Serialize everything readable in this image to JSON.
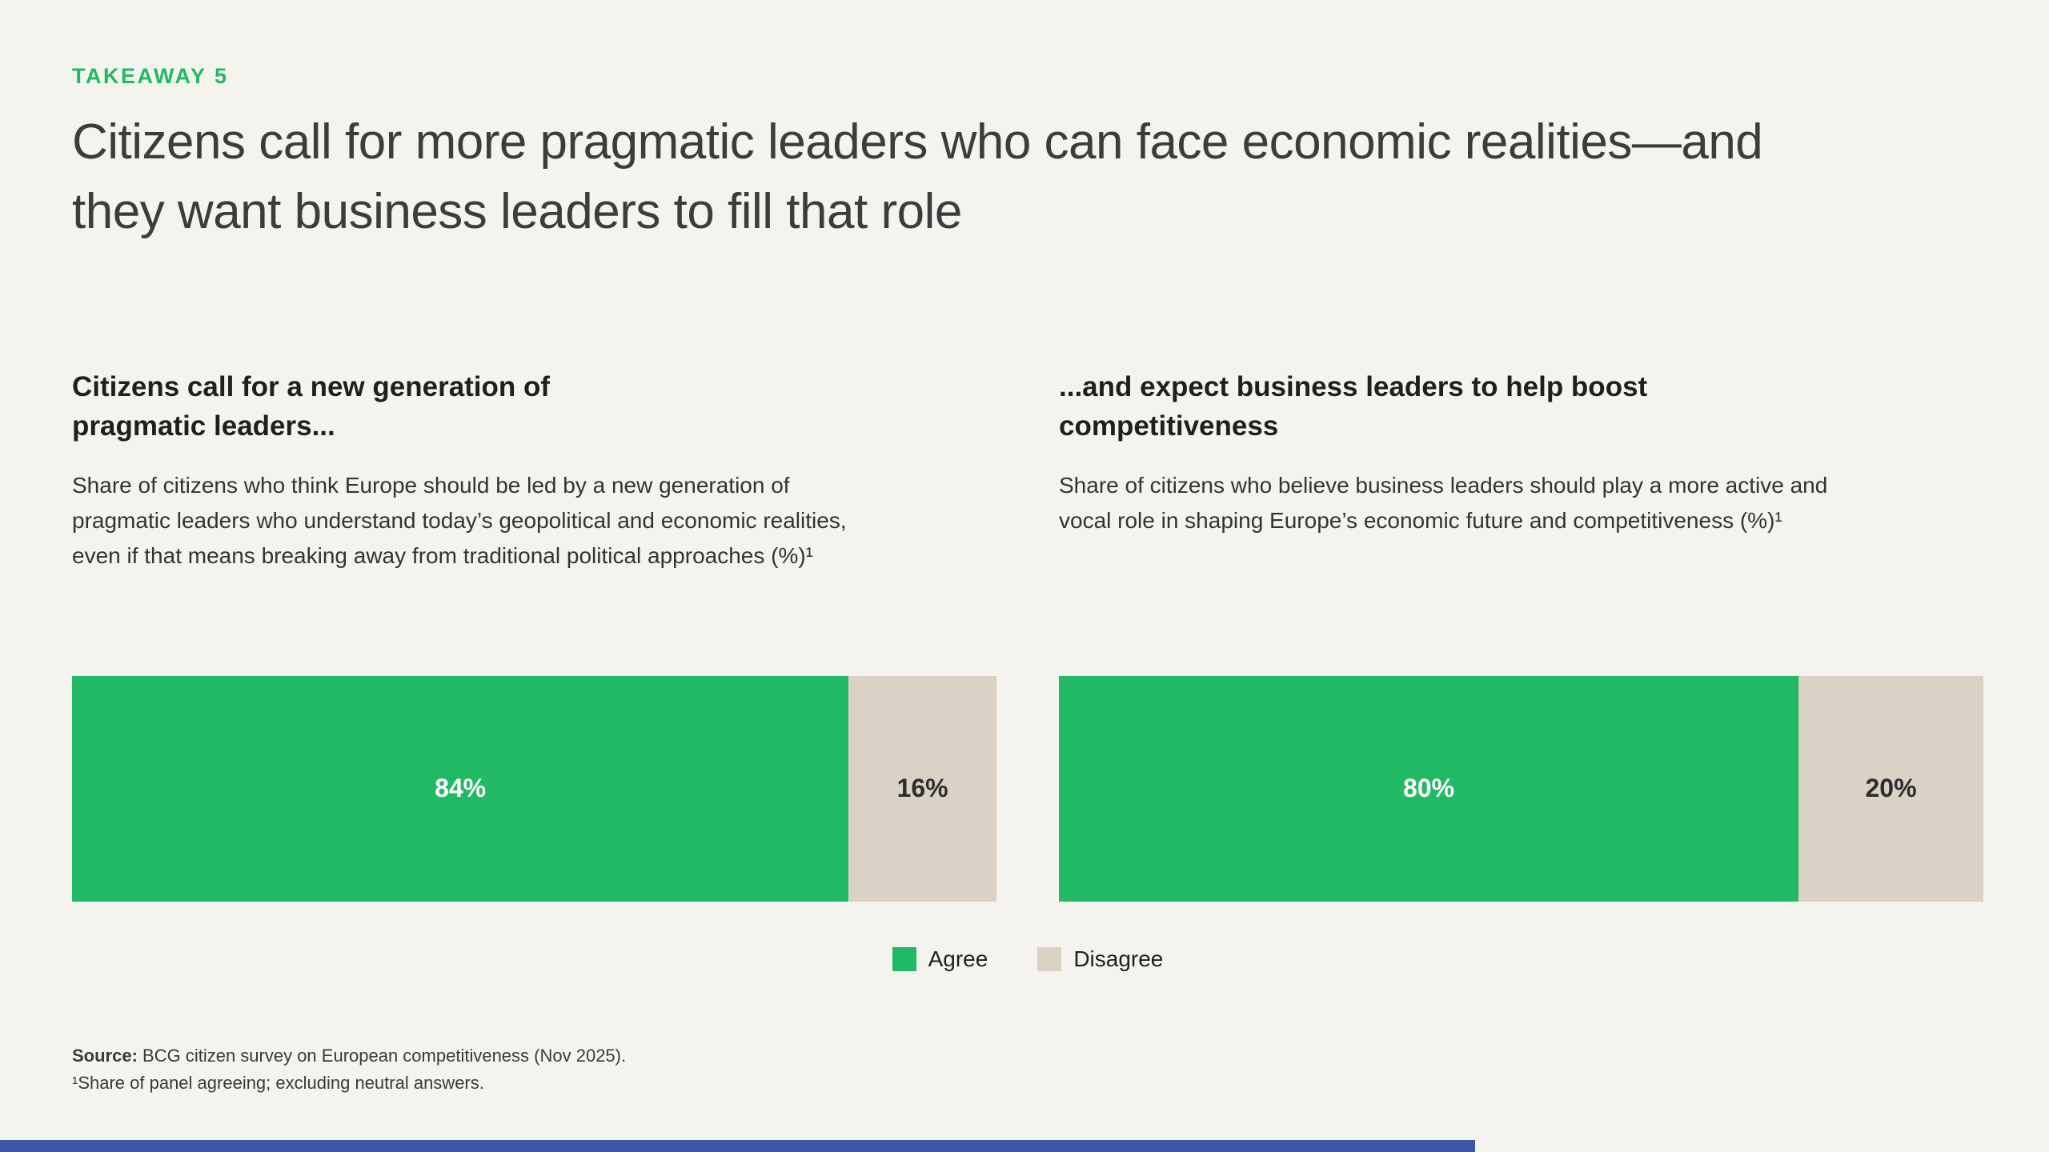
{
  "colors": {
    "background": "#F4F3EE",
    "green": "#21B964",
    "beige": "#D9D2C5",
    "navy": "#3D56A6"
  },
  "kicker": "TAKEAWAY 5",
  "title": "Citizens call for more pragmatic leaders who can face economic realities—and they want business leaders to fill that role",
  "panels": [
    {
      "heading": "Citizens call for a new generation of pragmatic leaders...",
      "description": "Share of citizens who think Europe should be led by a new generation of pragmatic leaders who understand today’s geopolitical and economic realities, even if that means breaking away from traditional political approaches (%)¹",
      "agree": 84,
      "disagree": 16,
      "agree_label": "84%",
      "disagree_label": "16%"
    },
    {
      "heading": "...and expect business leaders to help boost competitiveness",
      "description": "Share of citizens who believe business leaders should play a more active and vocal role in shaping Europe’s economic future and competitiveness (%)¹",
      "agree": 80,
      "disagree": 20,
      "agree_label": "80%",
      "disagree_label": "20%"
    }
  ],
  "legend": [
    {
      "label": "Agree",
      "color": "#21B964"
    },
    {
      "label": "Disagree",
      "color": "#D9D2C5"
    }
  ],
  "footnotes": {
    "source_label": "Source:",
    "source_text": " BCG citizen survey on European competitiveness (Nov 2025).",
    "note": "¹Share of panel agreeing; excluding neutral answers."
  },
  "chart_data": [
    {
      "type": "bar",
      "orientation": "horizontal-stacked",
      "title": "Citizens call for a new generation of pragmatic leaders...",
      "subtitle": "Share of citizens who think Europe should be led by a new generation of pragmatic leaders who understand today’s geopolitical and economic realities, even if that means breaking away from traditional political approaches (%)",
      "categories": [
        "Agree",
        "Disagree"
      ],
      "values": [
        84,
        16
      ],
      "unit": "%",
      "xlim": [
        0,
        100
      ],
      "legend_position": "bottom-center",
      "grid": false
    },
    {
      "type": "bar",
      "orientation": "horizontal-stacked",
      "title": "...and expect business leaders to help boost competitiveness",
      "subtitle": "Share of citizens who believe business leaders should play a more active and vocal role in shaping Europe’s economic future and competitiveness (%)",
      "categories": [
        "Agree",
        "Disagree"
      ],
      "values": [
        80,
        20
      ],
      "unit": "%",
      "xlim": [
        0,
        100
      ],
      "legend_position": "bottom-center",
      "grid": false
    }
  ]
}
